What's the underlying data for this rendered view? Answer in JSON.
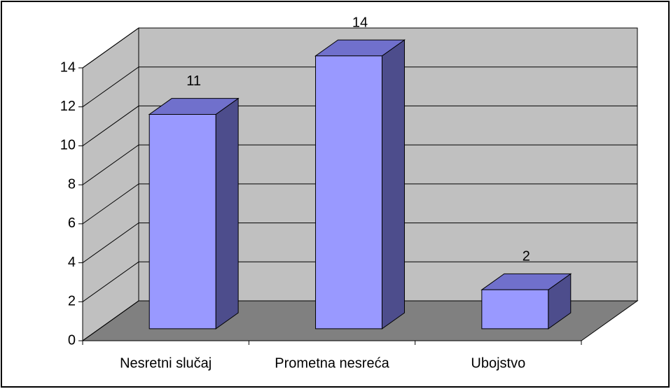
{
  "chart_data": {
    "type": "bar3d",
    "categories": [
      "Nesretni slučaj",
      "Prometna nesreća",
      "Ubojstvo"
    ],
    "values": [
      11,
      14,
      2
    ],
    "color": "#9999ff",
    "ylim": [
      0,
      14
    ],
    "yticks": [
      0,
      2,
      4,
      6,
      8,
      10,
      12,
      14
    ],
    "grid": true
  }
}
